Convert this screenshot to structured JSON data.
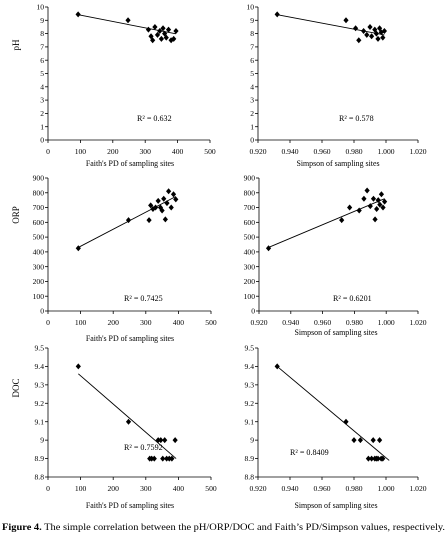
{
  "figure": {
    "caption_label": "Figure 4.",
    "caption_text": "The simple correlation between the pH/ORP/DOC and Faith’s PD/Simpson values, respectively."
  },
  "colors": {
    "background": "#ffffff",
    "marker": "#000000",
    "trendline": "#000000",
    "axis": "#000000"
  },
  "chart_data": [
    {
      "type": "scatter",
      "ylabel": "pH",
      "xlabel": "Faith's PD of sampling sites",
      "xlim": [
        0,
        500
      ],
      "ylim": [
        0,
        10
      ],
      "xticks": [
        "0",
        "100",
        "200",
        "300",
        "400",
        "500"
      ],
      "yticks": [
        "0",
        "1",
        "2",
        "3",
        "4",
        "5",
        "6",
        "7",
        "8",
        "9",
        "10"
      ],
      "grid": false,
      "marker": "diamond",
      "annotation": "R² = 0.632",
      "points": [
        [
          93,
          9.45
        ],
        [
          247,
          9.0
        ],
        [
          310,
          8.3
        ],
        [
          318,
          7.8
        ],
        [
          323,
          7.5
        ],
        [
          330,
          8.5
        ],
        [
          338,
          7.9
        ],
        [
          345,
          8.2
        ],
        [
          350,
          7.6
        ],
        [
          355,
          8.4
        ],
        [
          360,
          8.0
        ],
        [
          365,
          7.7
        ],
        [
          372,
          8.3
        ],
        [
          380,
          7.5
        ],
        [
          388,
          7.6
        ],
        [
          395,
          8.2
        ]
      ],
      "trendline": {
        "x": [
          93,
          395
        ],
        "y": [
          9.42,
          7.98
        ]
      }
    },
    {
      "type": "scatter",
      "xlabel": "Simpson of sampling sites",
      "xlim": [
        0.92,
        1.02
      ],
      "ylim": [
        0,
        10
      ],
      "xticks": [
        "0.920",
        "0.940",
        "0.960",
        "0.980",
        "1.000",
        "1.020"
      ],
      "yticks": [
        "0",
        "1",
        "2",
        "3",
        "4",
        "5",
        "6",
        "7",
        "8",
        "9",
        "10"
      ],
      "grid": false,
      "marker": "diamond",
      "annotation": "R² = 0.578",
      "points": [
        [
          0.932,
          9.45
        ],
        [
          0.975,
          9.0
        ],
        [
          0.981,
          8.4
        ],
        [
          0.983,
          7.5
        ],
        [
          0.986,
          8.2
        ],
        [
          0.988,
          7.9
        ],
        [
          0.99,
          8.5
        ],
        [
          0.991,
          7.8
        ],
        [
          0.993,
          8.3
        ],
        [
          0.994,
          8.0
        ],
        [
          0.995,
          7.6
        ],
        [
          0.996,
          8.4
        ],
        [
          0.997,
          8.1
        ],
        [
          0.998,
          7.7
        ],
        [
          0.999,
          8.2
        ]
      ],
      "trendline": {
        "x": [
          0.932,
          0.999
        ],
        "y": [
          9.42,
          7.9
        ]
      }
    },
    {
      "type": "scatter",
      "ylabel": "ORP",
      "xlabel": "Faith's PD of sampling sites",
      "xlim": [
        0,
        500
      ],
      "ylim": [
        0,
        900
      ],
      "xticks": [
        "0",
        "100",
        "200",
        "300",
        "400",
        "500"
      ],
      "yticks": [
        "0",
        "100",
        "200",
        "300",
        "400",
        "500",
        "600",
        "700",
        "800",
        "900"
      ],
      "grid": false,
      "marker": "diamond",
      "annotation": "R² = 0.7425",
      "points": [
        [
          93,
          425
        ],
        [
          247,
          615
        ],
        [
          310,
          615
        ],
        [
          315,
          715
        ],
        [
          322,
          690
        ],
        [
          330,
          700
        ],
        [
          338,
          745
        ],
        [
          345,
          700
        ],
        [
          350,
          680
        ],
        [
          355,
          760
        ],
        [
          360,
          620
        ],
        [
          365,
          730
        ],
        [
          370,
          810
        ],
        [
          378,
          700
        ],
        [
          385,
          790
        ],
        [
          392,
          755
        ]
      ],
      "trendline": {
        "x": [
          93,
          392
        ],
        "y": [
          430,
          775
        ]
      }
    },
    {
      "type": "scatter",
      "xlabel": "Simpson of sampling sites",
      "xlim": [
        0.92,
        1.02
      ],
      "ylim": [
        0,
        900
      ],
      "xticks": [
        "0.920",
        "0.940",
        "0.960",
        "0.980",
        "1.000",
        "1.020"
      ],
      "yticks": [
        "0",
        "100",
        "200",
        "300",
        "400",
        "500",
        "600",
        "700",
        "800",
        "900"
      ],
      "grid": false,
      "marker": "diamond",
      "annotation": "R² = 0.6201",
      "points": [
        [
          0.926,
          425
        ],
        [
          0.972,
          615
        ],
        [
          0.977,
          700
        ],
        [
          0.983,
          680
        ],
        [
          0.986,
          760
        ],
        [
          0.988,
          815
        ],
        [
          0.99,
          710
        ],
        [
          0.992,
          760
        ],
        [
          0.993,
          620
        ],
        [
          0.994,
          690
        ],
        [
          0.995,
          750
        ],
        [
          0.996,
          720
        ],
        [
          0.997,
          790
        ],
        [
          0.998,
          700
        ],
        [
          0.999,
          740
        ]
      ],
      "trendline": {
        "x": [
          0.926,
          0.999
        ],
        "y": [
          430,
          760
        ]
      }
    },
    {
      "type": "scatter",
      "ylabel": "DOC",
      "xlabel": "Faith's PD of sampling sites",
      "xlim": [
        0,
        500
      ],
      "ylim": [
        8.8,
        9.5
      ],
      "xticks": [
        "0",
        "100",
        "200",
        "300",
        "400",
        "500"
      ],
      "yticks": [
        "8.8",
        "8.9",
        "9",
        "9.1",
        "9.2",
        "9.3",
        "9.4",
        "9.5"
      ],
      "grid": false,
      "marker": "diamond",
      "annotation": "R² = 0.7592",
      "points": [
        [
          93,
          9.4
        ],
        [
          247,
          9.1
        ],
        [
          312,
          8.9
        ],
        [
          318,
          8.9
        ],
        [
          326,
          8.9
        ],
        [
          338,
          9.0
        ],
        [
          346,
          9.0
        ],
        [
          352,
          8.9
        ],
        [
          358,
          9.0
        ],
        [
          364,
          8.9
        ],
        [
          372,
          8.9
        ],
        [
          380,
          8.9
        ],
        [
          390,
          9.0
        ]
      ],
      "trendline": {
        "x": [
          93,
          393
        ],
        "y": [
          9.36,
          8.9
        ]
      }
    },
    {
      "type": "scatter",
      "xlabel": "Simpson of sampling sites",
      "xlim": [
        0.92,
        1.02
      ],
      "ylim": [
        8.8,
        9.5
      ],
      "xticks": [
        "0.920",
        "0.940",
        "0.960",
        "0.980",
        "1.000",
        "1.020"
      ],
      "yticks": [
        "8.8",
        "8.9",
        "9",
        "9.1",
        "9.2",
        "9.3",
        "9.4",
        "9.5"
      ],
      "grid": false,
      "marker": "diamond",
      "annotation": "R² = 0.8409",
      "points": [
        [
          0.932,
          9.4
        ],
        [
          0.975,
          9.1
        ],
        [
          0.98,
          9.0
        ],
        [
          0.984,
          9.0
        ],
        [
          0.989,
          8.9
        ],
        [
          0.991,
          8.9
        ],
        [
          0.992,
          9.0
        ],
        [
          0.993,
          8.9
        ],
        [
          0.994,
          8.9
        ],
        [
          0.995,
          8.9
        ],
        [
          0.996,
          9.0
        ],
        [
          0.997,
          8.9
        ],
        [
          0.998,
          8.9
        ]
      ],
      "trendline": {
        "x": [
          0.932,
          1.002
        ],
        "y": [
          9.4,
          8.89
        ]
      }
    }
  ]
}
